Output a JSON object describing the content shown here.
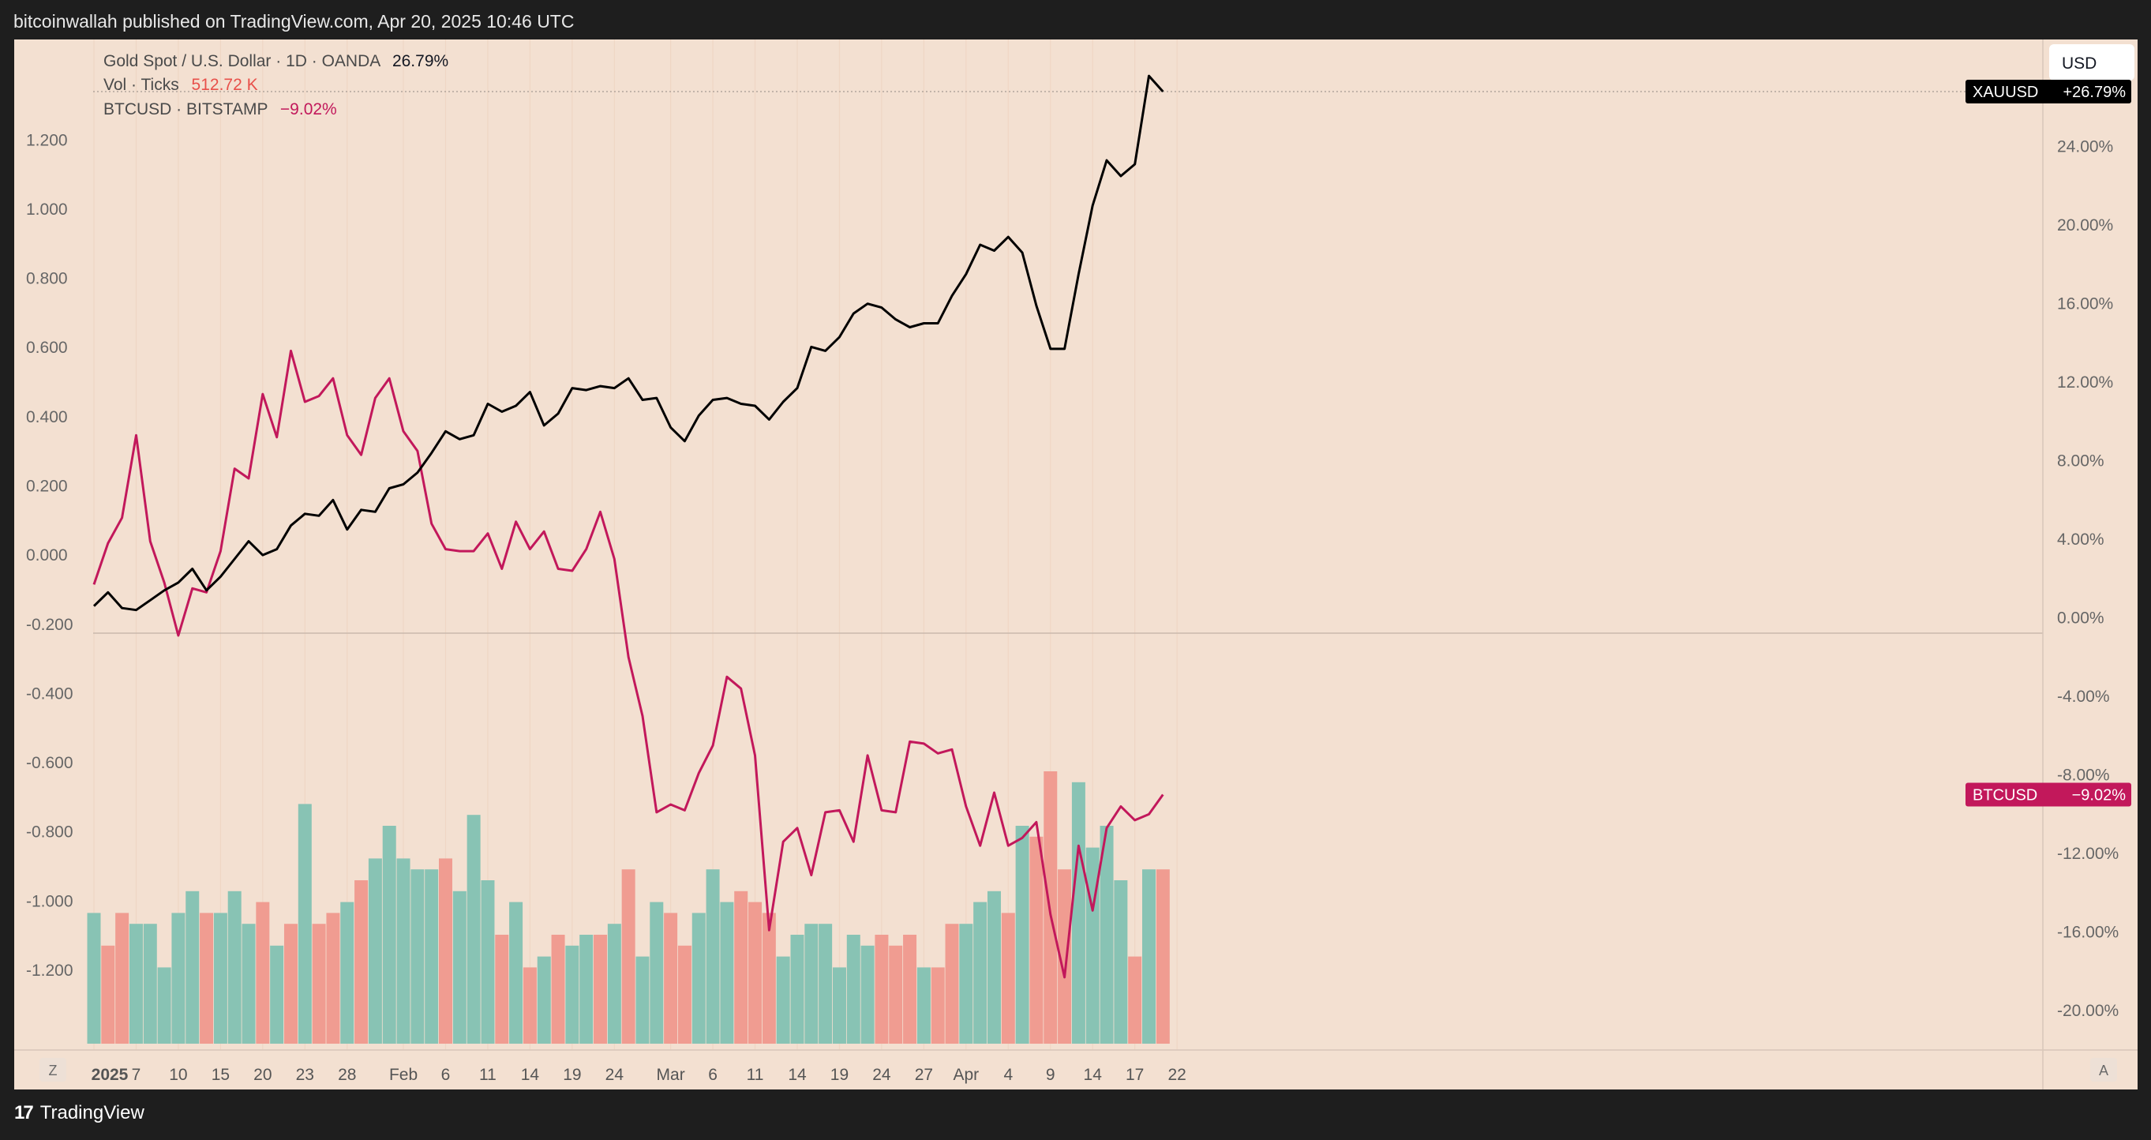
{
  "header": {
    "published_text": "bitcoinwallah published on TradingView.com, Apr 20, 2025 10:46 UTC"
  },
  "footer": {
    "brand": "TradingView"
  },
  "legend": {
    "gold": {
      "name": "Gold Spot / U.S. Dollar · 1D · OANDA",
      "value": "26.79%"
    },
    "vol": {
      "name": "Vol · Ticks",
      "value": "512.72 K"
    },
    "btc": {
      "name": "BTCUSD · BITSTAMP",
      "value": "−9.02%"
    }
  },
  "currency_button": "USD",
  "price_labels": {
    "gold": {
      "symbol": "XAUUSD",
      "value": "+26.79%"
    },
    "btc": {
      "symbol": "BTCUSD",
      "value": "−9.02%"
    }
  },
  "axis_buttons": {
    "left": "Z",
    "right": "A"
  },
  "colors": {
    "background": "#f3e0d1",
    "gold_line": "#000000",
    "btc_line": "#c2185b",
    "vol_up": "#88c3b4",
    "vol_down": "#f09c91",
    "label_gold_bg": "#000000",
    "label_btc_bg": "#c2185b"
  },
  "chart_data": {
    "type": "line",
    "x_tick_labels": [
      "2025",
      "7",
      "10",
      "15",
      "20",
      "23",
      "28",
      "Feb",
      "6",
      "11",
      "14",
      "19",
      "24",
      "Mar",
      "6",
      "11",
      "14",
      "19",
      "24",
      "27",
      "Apr",
      "4",
      "9",
      "14",
      "17",
      "22"
    ],
    "left_axis": {
      "ticks": [
        "1.200",
        "1.000",
        "0.800",
        "0.600",
        "0.400",
        "0.200",
        "0.000",
        "-0.200",
        "-0.400",
        "-0.600",
        "-0.800",
        "-1.000",
        "-1.200"
      ],
      "range": [
        -1.385,
        1.34
      ]
    },
    "right_axis": {
      "ticks": [
        "24.00%",
        "20.00%",
        "16.00%",
        "12.00%",
        "8.00%",
        "4.00%",
        "0.00%",
        "-4.00%",
        "-8.00%",
        "-12.00%",
        "-16.00%",
        "-20.00%"
      ],
      "range": [
        -21.2,
        26.8
      ],
      "unit": "%"
    },
    "series": [
      {
        "name": "XAUUSD",
        "axis": "right",
        "values": [
          0.6,
          1.3,
          0.5,
          0.4,
          0.9,
          1.4,
          1.8,
          2.5,
          1.4,
          2.1,
          3.0,
          3.9,
          3.2,
          3.5,
          4.7,
          5.3,
          5.2,
          6.0,
          4.5,
          5.5,
          5.4,
          6.6,
          6.8,
          7.4,
          8.4,
          9.5,
          9.1,
          9.3,
          10.9,
          10.5,
          10.8,
          11.5,
          9.8,
          10.4,
          11.7,
          11.6,
          11.8,
          11.7,
          12.2,
          11.1,
          11.2,
          9.7,
          9.0,
          10.3,
          11.1,
          11.2,
          10.9,
          10.8,
          10.1,
          11.0,
          11.7,
          13.8,
          13.6,
          14.3,
          15.5,
          16.0,
          15.8,
          15.2,
          14.8,
          15.0,
          15.0,
          16.4,
          17.5,
          19.0,
          18.7,
          19.4,
          18.6,
          15.9,
          13.7,
          13.7,
          17.5,
          21.0,
          23.3,
          22.5,
          23.1,
          27.6,
          26.8
        ]
      },
      {
        "name": "BTCUSD",
        "axis": "right",
        "values": [
          1.7,
          3.8,
          5.1,
          9.3,
          3.9,
          1.8,
          -0.9,
          1.5,
          1.3,
          3.4,
          7.6,
          7.1,
          11.4,
          9.2,
          13.6,
          11.0,
          11.3,
          12.2,
          9.3,
          8.3,
          11.2,
          12.2,
          9.5,
          8.5,
          4.8,
          3.5,
          3.4,
          3.4,
          4.3,
          2.5,
          4.9,
          3.5,
          4.4,
          2.5,
          2.4,
          3.5,
          5.4,
          3.0,
          -2.0,
          -5.0,
          -9.9,
          -9.5,
          -9.8,
          -7.9,
          -6.5,
          -3.0,
          -3.6,
          -7.0,
          -15.9,
          -11.4,
          -10.7,
          -13.1,
          -9.9,
          -9.8,
          -11.4,
          -7.0,
          -9.8,
          -9.9,
          -6.3,
          -6.4,
          -6.9,
          -6.7,
          -9.6,
          -11.6,
          -8.9,
          -11.6,
          -11.2,
          -10.4,
          -15.1,
          -18.3,
          -11.6,
          -14.9,
          -10.7,
          -9.6,
          -10.3,
          -10.0,
          -9.0
        ]
      },
      {
        "name": "Vol",
        "type": "bar",
        "up": [
          true,
          false,
          false,
          true,
          true,
          true,
          true,
          true,
          false,
          true,
          true,
          true,
          false,
          true,
          false,
          true,
          false,
          false,
          true,
          false,
          true,
          true,
          true,
          true,
          true,
          false,
          true,
          true,
          true,
          false,
          true,
          false,
          true,
          false,
          true,
          true,
          false,
          true,
          false,
          true,
          true,
          false,
          false,
          true,
          true,
          true,
          false,
          false,
          false,
          true,
          true,
          true,
          true,
          true,
          true,
          true,
          false,
          false,
          false,
          true,
          false,
          false,
          true,
          true,
          true,
          false,
          true,
          false,
          false,
          false,
          true,
          true,
          true,
          true,
          false,
          true,
          false
        ],
        "values": [
          0.12,
          0.09,
          0.12,
          0.11,
          0.11,
          0.07,
          0.12,
          0.14,
          0.12,
          0.12,
          0.14,
          0.11,
          0.13,
          0.09,
          0.11,
          0.22,
          0.11,
          0.12,
          0.13,
          0.15,
          0.17,
          0.2,
          0.17,
          0.16,
          0.16,
          0.17,
          0.14,
          0.21,
          0.15,
          0.1,
          0.13,
          0.07,
          0.08,
          0.1,
          0.09,
          0.1,
          0.1,
          0.11,
          0.16,
          0.08,
          0.13,
          0.12,
          0.09,
          0.12,
          0.16,
          0.13,
          0.14,
          0.13,
          0.12,
          0.08,
          0.1,
          0.11,
          0.11,
          0.07,
          0.1,
          0.09,
          0.1,
          0.09,
          0.1,
          0.07,
          0.07,
          0.11,
          0.11,
          0.13,
          0.14,
          0.12,
          0.2,
          0.19,
          0.25,
          0.16,
          0.24,
          0.18,
          0.2,
          0.15,
          0.08,
          0.16,
          0.16
        ]
      }
    ]
  }
}
